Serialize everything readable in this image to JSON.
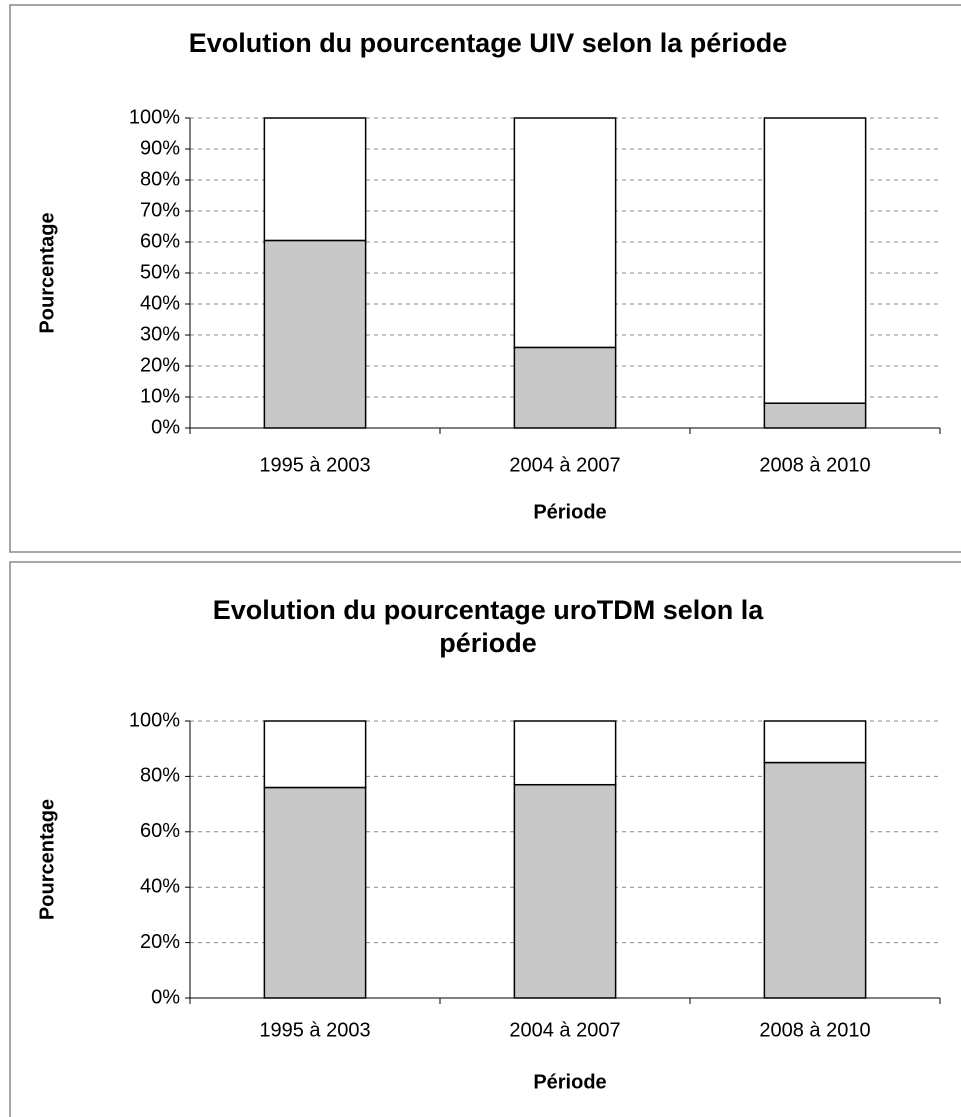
{
  "chart_data": [
    {
      "type": "bar",
      "stacked": true,
      "title": [
        "Evolution du pourcentage UIV selon la période"
      ],
      "xlabel": "Période",
      "ylabel": "Pourcentage",
      "categories": [
        "1995 à 2003",
        "2004 à 2007",
        "2008 à 2010"
      ],
      "series": [
        {
          "color": "#c8c8c8",
          "values": [
            60.5,
            26,
            8
          ]
        },
        {
          "color": "#ffffff",
          "values": [
            39.5,
            74,
            92
          ]
        }
      ],
      "ylim": [
        0,
        100
      ],
      "yticks": [
        {
          "value": 0,
          "label": "0%"
        },
        {
          "value": 10,
          "label": "10%"
        },
        {
          "value": 20,
          "label": "20%"
        },
        {
          "value": 30,
          "label": "30%"
        },
        {
          "value": 40,
          "label": "40%"
        },
        {
          "value": 50,
          "label": "50%"
        },
        {
          "value": 60,
          "label": "60%"
        },
        {
          "value": 70,
          "label": "70%"
        },
        {
          "value": 80,
          "label": "80%"
        },
        {
          "value": 90,
          "label": "90%"
        },
        {
          "value": 100,
          "label": "100%"
        }
      ],
      "grid": true
    },
    {
      "type": "bar",
      "stacked": true,
      "title": [
        "Evolution du pourcentage uroTDM selon la",
        "période"
      ],
      "xlabel": "Période",
      "ylabel": "Pourcentage",
      "categories": [
        "1995 à 2003",
        "2004 à 2007",
        "2008 à 2010"
      ],
      "series": [
        {
          "color": "#c8c8c8",
          "values": [
            76,
            77,
            85
          ]
        },
        {
          "color": "#ffffff",
          "values": [
            24,
            23,
            15
          ]
        }
      ],
      "ylim": [
        0,
        100
      ],
      "yticks": [
        {
          "value": 0,
          "label": "0%"
        },
        {
          "value": 20,
          "label": "20%"
        },
        {
          "value": 40,
          "label": "40%"
        },
        {
          "value": 60,
          "label": "60%"
        },
        {
          "value": 80,
          "label": "80%"
        },
        {
          "value": 100,
          "label": "100%"
        }
      ],
      "grid": true
    }
  ]
}
